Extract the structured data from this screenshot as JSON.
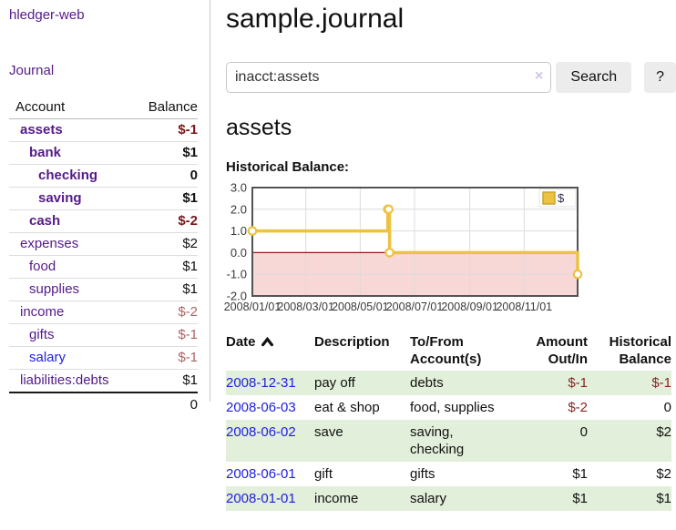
{
  "app": {
    "title": "hledger-web"
  },
  "colors": {
    "link_purple": "#551A8B",
    "link_blue": "#2222dd",
    "negative_strong": "#7b1717",
    "negative_soft": "#b06363",
    "table_negative": "#8b2525",
    "row_stripe_green": "#e2efda",
    "chart_line_gold": "#EDC240",
    "chart_negative_region_pink": "#f8d7d7",
    "chart_zero_line_red": "#8b1a1a"
  },
  "sidebar": {
    "journal_link": "Journal",
    "table": {
      "account_header": "Account",
      "balance_header": "Balance",
      "rows": [
        {
          "account": "assets",
          "balance": "$-1",
          "indent": 1,
          "bold": true,
          "balance_style": "neg-strong"
        },
        {
          "account": "bank",
          "balance": "$1",
          "indent": 2,
          "bold": true,
          "balance_style": "pos"
        },
        {
          "account": "checking",
          "balance": "0",
          "indent": 3,
          "bold": true,
          "balance_style": "pos"
        },
        {
          "account": "saving",
          "balance": "$1",
          "indent": 3,
          "bold": true,
          "balance_style": "pos"
        },
        {
          "account": "cash",
          "balance": "$-2",
          "indent": 2,
          "bold": true,
          "balance_style": "neg-strong"
        },
        {
          "account": "expenses",
          "balance": "$2",
          "indent": 1,
          "bold": false,
          "balance_style": "pos"
        },
        {
          "account": "food",
          "balance": "$1",
          "indent": 2,
          "bold": false,
          "balance_style": "pos"
        },
        {
          "account": "supplies",
          "balance": "$1",
          "indent": 2,
          "bold": false,
          "balance_style": "pos"
        },
        {
          "account": "income",
          "balance": "$-2",
          "indent": 1,
          "bold": false,
          "balance_style": "neg-soft"
        },
        {
          "account": "gifts",
          "balance": "$-1",
          "indent": 2,
          "bold": false,
          "balance_style": "neg-soft"
        },
        {
          "account": "salary",
          "balance": "$-1",
          "indent": 2,
          "bold": false,
          "balance_style": "neg-soft",
          "link_color": "blue"
        },
        {
          "account": "liabilities:debts",
          "balance": "$1",
          "indent": 1,
          "bold": false,
          "balance_style": "pos"
        }
      ],
      "total": "0"
    }
  },
  "main": {
    "title": "sample.journal",
    "search": {
      "value": "inacct:assets",
      "clear_icon": "×",
      "button_label": "Search",
      "help_label": "?"
    },
    "account_heading": "assets",
    "chart_label": "Historical Balance:"
  },
  "chart_data": {
    "type": "line",
    "title": "Historical Balance:",
    "step": true,
    "x_range_days": [
      0,
      365
    ],
    "ylim": [
      -2,
      3
    ],
    "grid": true,
    "legend_position": "top-right",
    "y_ticks": [
      "3.0",
      "2.0",
      "1.0",
      "0.0",
      "-1.0",
      "-2.0"
    ],
    "x_ticks": [
      {
        "label": "2008/01/01",
        "day": 0
      },
      {
        "label": "2008/03/01",
        "day": 60
      },
      {
        "label": "2008/05/01",
        "day": 121
      },
      {
        "label": "2008/07/01",
        "day": 182
      },
      {
        "label": "2008/09/01",
        "day": 244
      },
      {
        "label": "2008/11/01",
        "day": 305
      }
    ],
    "series": [
      {
        "name": "$",
        "dates": [
          "2008-01-01",
          "2008-06-01",
          "2008-06-02",
          "2008-06-03",
          "2008-12-31"
        ],
        "values": [
          1,
          2,
          2,
          0,
          -1
        ],
        "points": [
          [
            0,
            1
          ],
          [
            152,
            2
          ],
          [
            153,
            2
          ],
          [
            154,
            0
          ],
          [
            365,
            -1
          ]
        ]
      }
    ],
    "negative_region_color": "#f8d7d7",
    "line_color": "#EDC240",
    "zero_line_color": "#8b1a1a"
  },
  "transactions": {
    "columns": [
      {
        "id": "date",
        "lines": [
          "Date"
        ],
        "align": "left",
        "sorted": "asc"
      },
      {
        "id": "description",
        "lines": [
          "Description"
        ],
        "align": "left"
      },
      {
        "id": "accounts",
        "lines": [
          "To/From",
          "Account(s)"
        ],
        "align": "left"
      },
      {
        "id": "amount",
        "lines": [
          "Amount",
          "Out/In"
        ],
        "align": "right"
      },
      {
        "id": "balance",
        "lines": [
          "Historical",
          "Balance"
        ],
        "align": "right"
      }
    ],
    "rows": [
      {
        "date": "2008-12-31",
        "description": "pay off",
        "accounts": "debts",
        "amount": "$-1",
        "amount_negative": true,
        "balance": "$-1",
        "balance_negative": true
      },
      {
        "date": "2008-06-03",
        "description": "eat & shop",
        "accounts": "food, supplies",
        "amount": "$-2",
        "amount_negative": true,
        "balance": "0",
        "balance_negative": false
      },
      {
        "date": "2008-06-02",
        "description": "save",
        "accounts": "saving, checking",
        "amount": "0",
        "amount_negative": false,
        "balance": "$2",
        "balance_negative": false
      },
      {
        "date": "2008-06-01",
        "description": "gift",
        "accounts": "gifts",
        "amount": "$1",
        "amount_negative": false,
        "balance": "$2",
        "balance_negative": false
      },
      {
        "date": "2008-01-01",
        "description": "income",
        "accounts": "salary",
        "amount": "$1",
        "amount_negative": false,
        "balance": "$1",
        "balance_negative": false
      }
    ]
  }
}
